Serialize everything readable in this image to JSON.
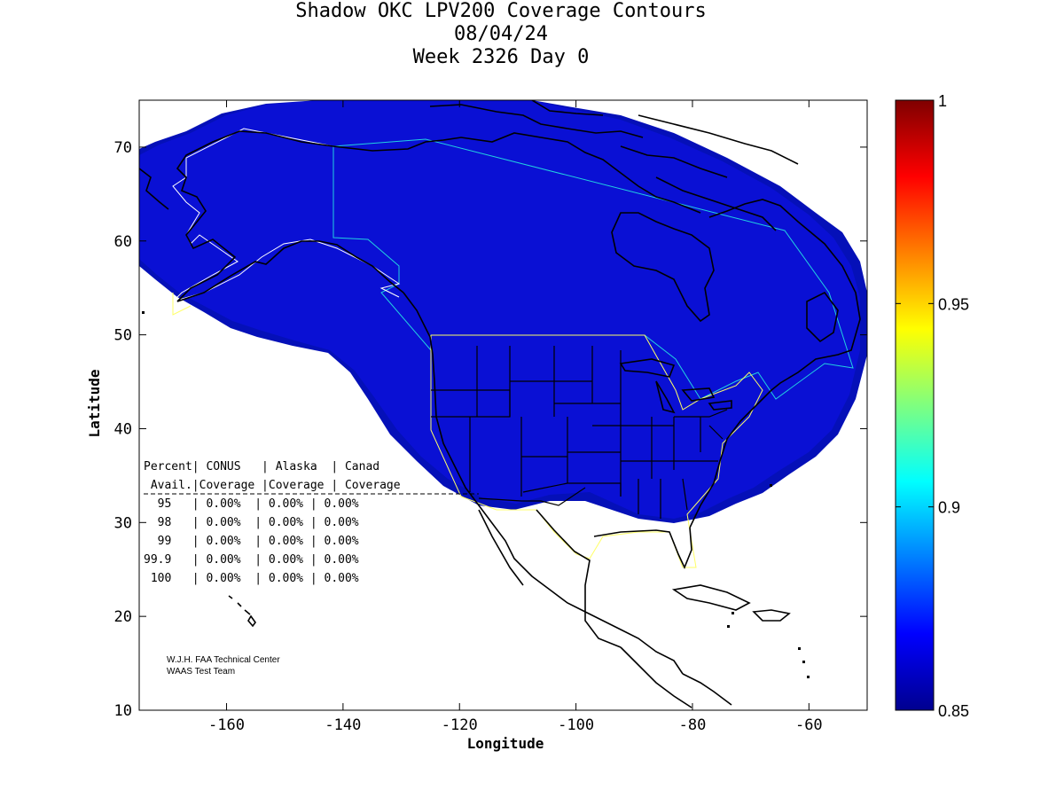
{
  "title": {
    "line1": "Shadow OKC LPV200 Coverage Contours",
    "line2": "08/04/24",
    "line3": "Week 2326 Day 0"
  },
  "axes": {
    "xlabel": "Longitude",
    "ylabel": "Latitude",
    "xlim": [
      -175,
      -50
    ],
    "ylim": [
      10,
      75
    ],
    "xticks": [
      {
        "v": -160,
        "label": "-160"
      },
      {
        "v": -140,
        "label": "-140"
      },
      {
        "v": -120,
        "label": "-120"
      },
      {
        "v": -100,
        "label": "-100"
      },
      {
        "v": -80,
        "label": "-80"
      },
      {
        "v": -60,
        "label": "-60"
      }
    ],
    "yticks": [
      {
        "v": 10,
        "label": "10"
      },
      {
        "v": 20,
        "label": "20"
      },
      {
        "v": 30,
        "label": "30"
      },
      {
        "v": 40,
        "label": "40"
      },
      {
        "v": 50,
        "label": "50"
      },
      {
        "v": 60,
        "label": "60"
      },
      {
        "v": 70,
        "label": "70"
      }
    ]
  },
  "colorbar": {
    "min": 0.85,
    "max": 1,
    "ticks": [
      {
        "v": 0.85,
        "label": "0.85"
      },
      {
        "v": 0.9,
        "label": "0.9"
      },
      {
        "v": 0.95,
        "label": "0.95"
      },
      {
        "v": 1,
        "label": "1"
      }
    ]
  },
  "coverage_table": {
    "header1": "Percent| CONUS   | Alaska  | Canad",
    "header2": " Avail.|Coverage |Coverage | Coverage",
    "rows": [
      "  95   | 0.00%  | 0.00% | 0.00%",
      "  98   | 0.00%  | 0.00% | 0.00%",
      "  99   | 0.00%  | 0.00% | 0.00%",
      "99.9   | 0.00%  | 0.00% | 0.00%",
      " 100   | 0.00%  | 0.00% | 0.00%"
    ]
  },
  "credits": {
    "line1": "W.J.H. FAA Technical Center",
    "line2": "WAAS Test Team"
  },
  "colors": {
    "coverage_fill": "#0a10d4",
    "coverage_edge": "#0510b8",
    "coastline": "#000000",
    "region_alaska_canada": "#22d0e0",
    "region_conus": "#ffff66"
  }
}
